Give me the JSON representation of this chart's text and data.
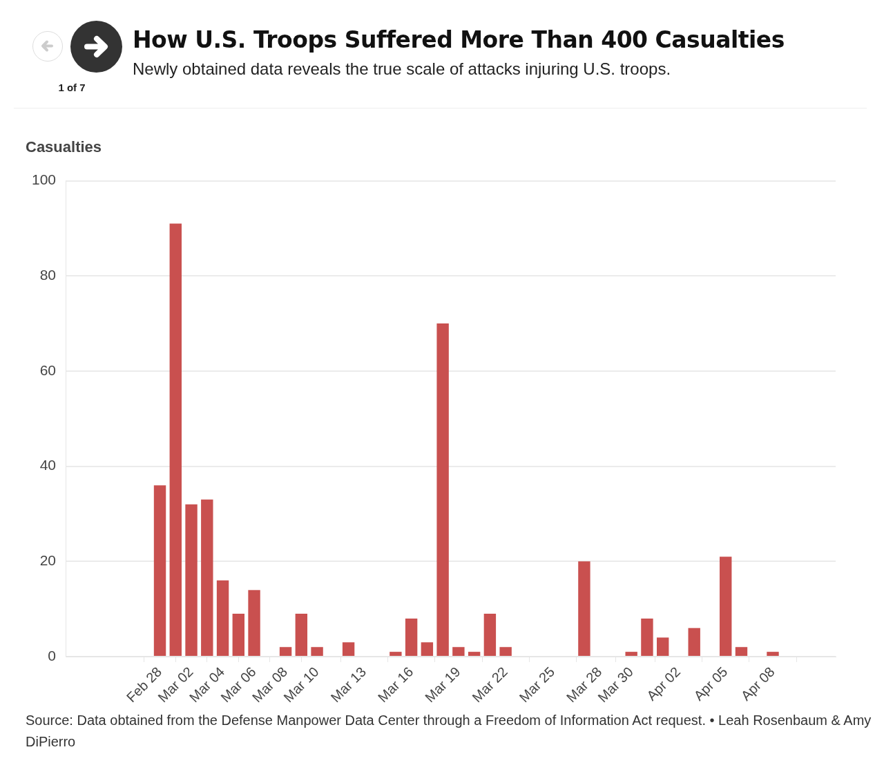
{
  "chart_data": {
    "type": "bar",
    "title": "How U.S. Troops Suffered More Than 400 Casualties",
    "subtitle": "Newly obtained data reveals the true scale of attacks injuring U.S. troops.",
    "ylabel": "Casualties",
    "annotations": [
      "1 of 7",
      "Source: Data obtained from the Defense Manpower Data Center through a Freedom of Information Act request. • Leah Rosenbaum & Amy DiPierro"
    ],
    "x": [
      "--02-28",
      "--03-01",
      "--03-02",
      "--03-03",
      "--03-04",
      "--03-05",
      "--03-06",
      "--03-07",
      "--03-08",
      "--03-09",
      "--03-10",
      "--03-11",
      "--03-12",
      "--03-13",
      "--03-14",
      "--03-15",
      "--03-16",
      "--03-17",
      "--03-18",
      "--03-19",
      "--03-20",
      "--03-21",
      "--03-22",
      "--03-23",
      "--03-24",
      "--03-25",
      "--03-26",
      "--03-27",
      "--03-28",
      "--03-29",
      "--03-30",
      "--03-31",
      "--04-01",
      "--04-02",
      "--04-03",
      "--04-04",
      "--04-05",
      "--04-06",
      "--04-07",
      "--04-08"
    ],
    "values": [
      36,
      91,
      32,
      33,
      16,
      9,
      14,
      0,
      2,
      9,
      2,
      0,
      3,
      0,
      0,
      1,
      8,
      3,
      70,
      2,
      1,
      9,
      2,
      0,
      0,
      0,
      0,
      20,
      0,
      0,
      1,
      8,
      4,
      0,
      6,
      null,
      21,
      2,
      null,
      1
    ],
    "color": "#c9504f",
    "xlim": [
      "--02-22",
      "--04-12"
    ],
    "xticks": [
      {
        "value": "--02-28",
        "label": "Feb 28"
      },
      {
        "value": "--03-02",
        "label": "Mar 02"
      },
      {
        "value": "--03-04",
        "label": "Mar 04"
      },
      {
        "value": "--03-06",
        "label": "Mar 06"
      },
      {
        "value": "--03-08",
        "label": "Mar 08"
      },
      {
        "value": "--03-10",
        "label": "Mar 10"
      },
      {
        "value": "--03-13",
        "label": "Mar 13"
      },
      {
        "value": "--03-16",
        "label": "Mar 16"
      },
      {
        "value": "--03-19",
        "label": "Mar 19"
      },
      {
        "value": "--03-22",
        "label": "Mar 22"
      },
      {
        "value": "--03-25",
        "label": "Mar 25"
      },
      {
        "value": "--03-28",
        "label": "Mar 28"
      },
      {
        "value": "--03-30",
        "label": "Mar 30"
      },
      {
        "value": "--04-02",
        "label": "Apr 02"
      },
      {
        "value": "--04-05",
        "label": "Apr 05"
      },
      {
        "value": "--04-08",
        "label": "Apr 08"
      }
    ],
    "ylim": [
      0,
      100
    ],
    "yticks": [
      0,
      20,
      40,
      60,
      80,
      100
    ],
    "grid": "y",
    "legend": false
  }
}
